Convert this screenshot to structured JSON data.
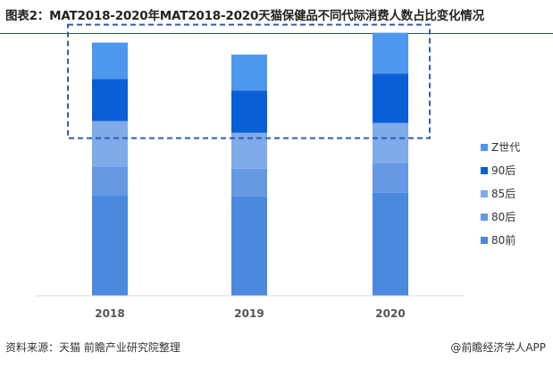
{
  "title": "图表2：MAT2018-2020年MAT2018-2020天猫保健品不同代际消费人数占比变化情况",
  "source": "资料来源：天猫 前瞻产业研究院整理",
  "brand": "@前瞻经济学人APP",
  "chart_data": {
    "type": "bar",
    "stacked": true,
    "categories": [
      "2018",
      "2019",
      "2020"
    ],
    "series": [
      {
        "name": "80前",
        "color": "#4a89de",
        "values": [
          36.8,
          36.4,
          37.7
        ]
      },
      {
        "name": "80后",
        "color": "#6599e4",
        "values": [
          10.5,
          10.1,
          10.9
        ]
      },
      {
        "name": "85后",
        "color": "#7fabea",
        "values": [
          16.6,
          13.1,
          14.6
        ]
      },
      {
        "name": "90后",
        "color": "#0b5fd6",
        "values": [
          15.4,
          15.5,
          18.0
        ]
      },
      {
        "name": "Z世代",
        "color": "#4e97ee",
        "values": [
          13.3,
          13.1,
          15.0
        ]
      }
    ],
    "ylim": [
      0,
      100
    ],
    "grid": false,
    "legend_position": "right",
    "highlight_box": {
      "series": [
        "90后",
        "Z世代"
      ],
      "style": "dashed"
    }
  }
}
